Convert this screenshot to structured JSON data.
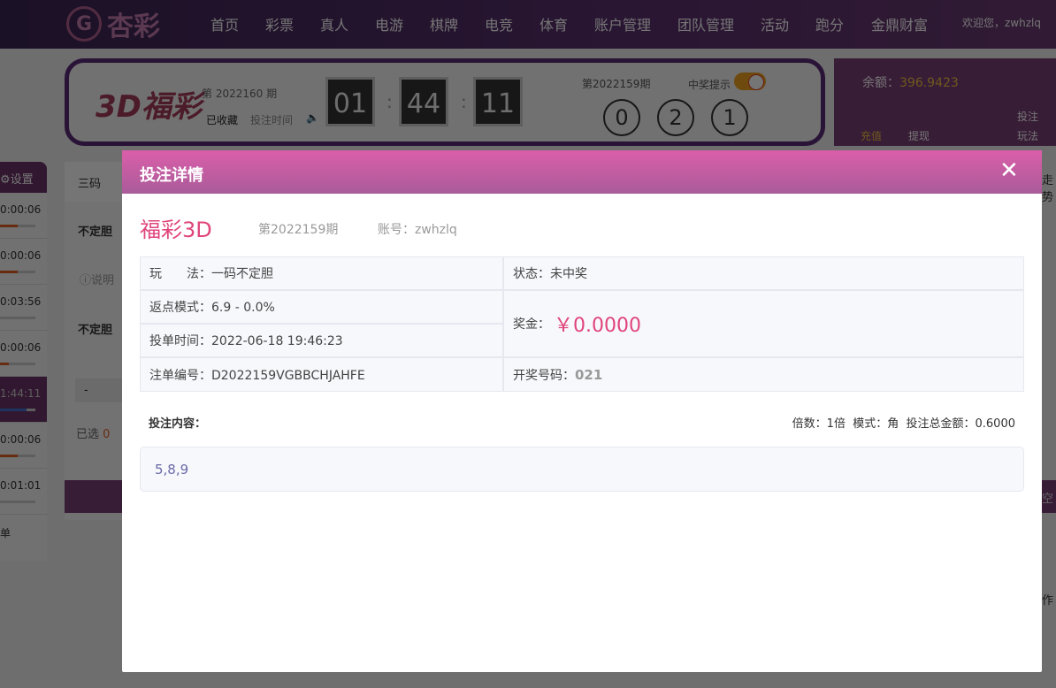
{
  "nav": {
    "logo": "杏彩",
    "items": [
      "首页",
      "彩票",
      "真人",
      "电游",
      "棋牌",
      "电竞",
      "体育",
      "账户管理",
      "团队管理",
      "活动",
      "跑分",
      "金鼎财富"
    ],
    "welcome": "欢迎您，zwhzlq"
  },
  "lottery": {
    "logo": "3D福彩",
    "issue": "第 2022160 期",
    "favorite": "已收藏",
    "bet_time": "投注时间",
    "countdown": [
      "01",
      "44",
      "11"
    ],
    "last_issue": "第2022159期",
    "win_alert": "中奖提示",
    "win_alert_on": true,
    "balls": [
      "0",
      "2",
      "1"
    ]
  },
  "account": {
    "balance_label": "余额：",
    "balance": "396.9423",
    "recharge": "充值",
    "withdraw": "提现",
    "bet_record": "投注",
    "rules": "玩法"
  },
  "sidebar": {
    "settings": "设置",
    "timers": [
      "0:00:06",
      "0:00:06",
      "0:03:56",
      "0:00:06",
      "1:44:11",
      "0:00:06",
      "0:01:01"
    ],
    "last": "单"
  },
  "middle": {
    "tab": "三码",
    "label1": "不定胆",
    "explain": "说明",
    "label2": "不定胆",
    "minus": "-",
    "selected": "已选",
    "selected_count": "0"
  },
  "right_strip": {
    "trend": "走势",
    "clear": "空",
    "action": "作"
  },
  "modal": {
    "title": "投注详情",
    "close": "✕",
    "lottery": "福彩3D",
    "issue": "第2022159期",
    "account": "账号：zwhzlq",
    "play": "玩　　法：一码不定胆",
    "rebate": "返点模式：6.9 - 0.0%",
    "order_time": "投单时间：2022-06-18 19:46:23",
    "order_no": "注单编号：D2022159VGBBCHJAHFE",
    "status": "状态：未中奖",
    "prize_label": "奖金：",
    "prize": "￥0.0000",
    "draw_label": "开奖号码：",
    "draw": "021",
    "content_label": "投注内容：",
    "multiple": "倍数：1倍",
    "mode": "模式：角",
    "total": "投注总金额：0.6000",
    "content": "5,8,9"
  }
}
